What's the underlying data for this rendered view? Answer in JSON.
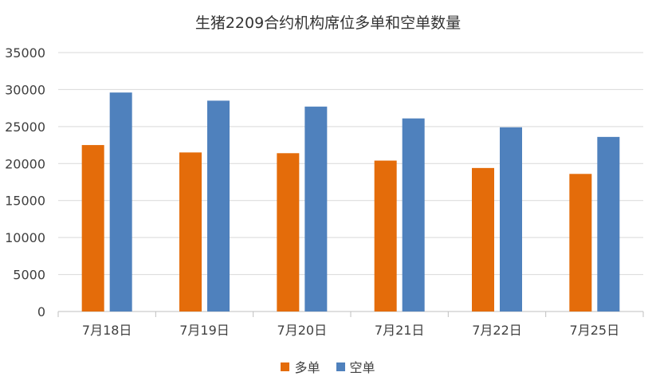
{
  "chart_data": {
    "type": "bar",
    "title": "生猪2209合约机构席位多单和空单数量",
    "categories": [
      "7月18日",
      "7月19日",
      "7月20日",
      "7月21日",
      "7月22日",
      "7月25日"
    ],
    "series": [
      {
        "name": "多单",
        "color": "#E46C0A",
        "values": [
          22500,
          21500,
          21400,
          20400,
          19400,
          18600
        ]
      },
      {
        "name": "空单",
        "color": "#4F81BD",
        "values": [
          29600,
          28500,
          27700,
          26100,
          24900,
          23600
        ]
      }
    ],
    "ylim": [
      0,
      35000
    ],
    "yticks": [
      0,
      5000,
      10000,
      15000,
      20000,
      25000,
      30000,
      35000
    ],
    "grid": true,
    "legend_position": "bottom"
  }
}
